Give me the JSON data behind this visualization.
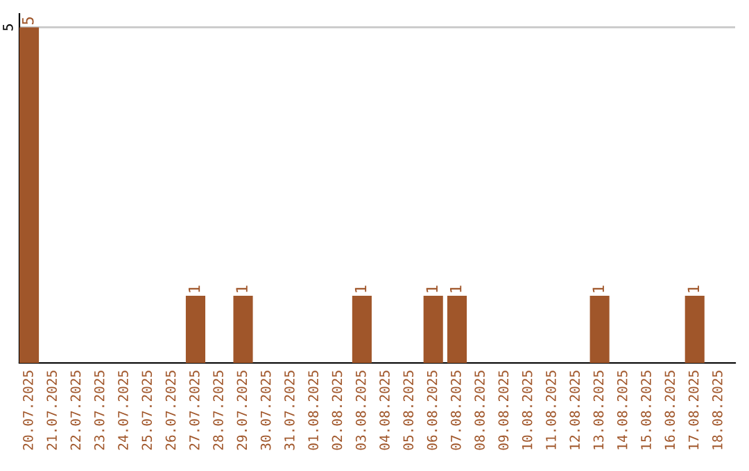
{
  "chart_data": {
    "type": "bar",
    "categories": [
      "20.07.2025",
      "21.07.2025",
      "22.07.2025",
      "23.07.2025",
      "24.07.2025",
      "25.07.2025",
      "26.07.2025",
      "27.07.2025",
      "28.07.2025",
      "29.07.2025",
      "30.07.2025",
      "31.07.2025",
      "01.08.2025",
      "02.08.2025",
      "03.08.2025",
      "04.08.2025",
      "05.08.2025",
      "06.08.2025",
      "07.08.2025",
      "08.08.2025",
      "09.08.2025",
      "10.08.2025",
      "11.08.2025",
      "12.08.2025",
      "13.08.2025",
      "14.08.2025",
      "15.08.2025",
      "16.08.2025",
      "17.08.2025",
      "18.08.2025"
    ],
    "values": [
      5,
      0,
      0,
      0,
      0,
      0,
      0,
      1,
      0,
      1,
      0,
      0,
      0,
      0,
      1,
      0,
      0,
      1,
      1,
      0,
      0,
      0,
      0,
      0,
      1,
      0,
      0,
      0,
      1,
      0
    ],
    "value_labels": [
      "5",
      null,
      null,
      null,
      null,
      null,
      null,
      "1",
      null,
      "1",
      null,
      null,
      null,
      null,
      "1",
      null,
      null,
      "1",
      "1",
      null,
      null,
      null,
      null,
      null,
      "1",
      null,
      null,
      null,
      "1",
      null
    ],
    "color": "#a0562a",
    "ylim": [
      0,
      5.2
    ],
    "yticks": [
      5
    ],
    "grid": "y"
  }
}
